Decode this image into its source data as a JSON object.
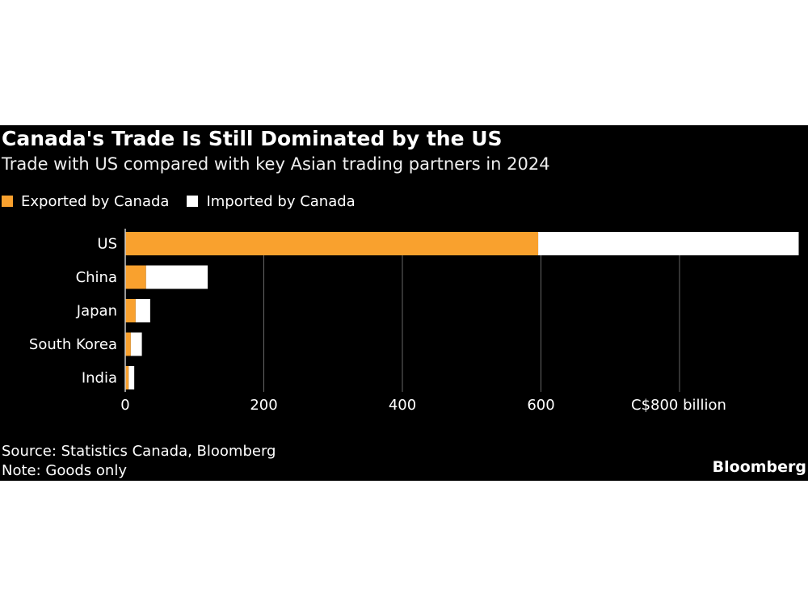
{
  "chart_data": {
    "type": "bar",
    "orientation": "horizontal",
    "stacked": true,
    "title": "Canada's Trade Is Still Dominated by the US",
    "subtitle": "Trade with US compared with key Asian trading partners in 2024",
    "categories": [
      "US",
      "China",
      "Japan",
      "South Korea",
      "India"
    ],
    "series": [
      {
        "name": "Exported by Canada",
        "color": "#f9a12e",
        "values": [
          596,
          30,
          15,
          8,
          5
        ]
      },
      {
        "name": "Imported by Canada",
        "color": "#ffffff",
        "values": [
          376,
          89,
          21,
          16,
          8
        ]
      }
    ],
    "xlim": [
      0,
      975
    ],
    "xticks": [
      0,
      200,
      400,
      600,
      800
    ],
    "xtick_labels": [
      "0",
      "200",
      "400",
      "600",
      "C$800 billion"
    ],
    "grid": "vertical",
    "legend": "top-left",
    "background": "#000000"
  },
  "footer": {
    "source": "Source: Statistics Canada, Bloomberg",
    "note": "Note: Goods only",
    "logo": "Bloomberg"
  }
}
